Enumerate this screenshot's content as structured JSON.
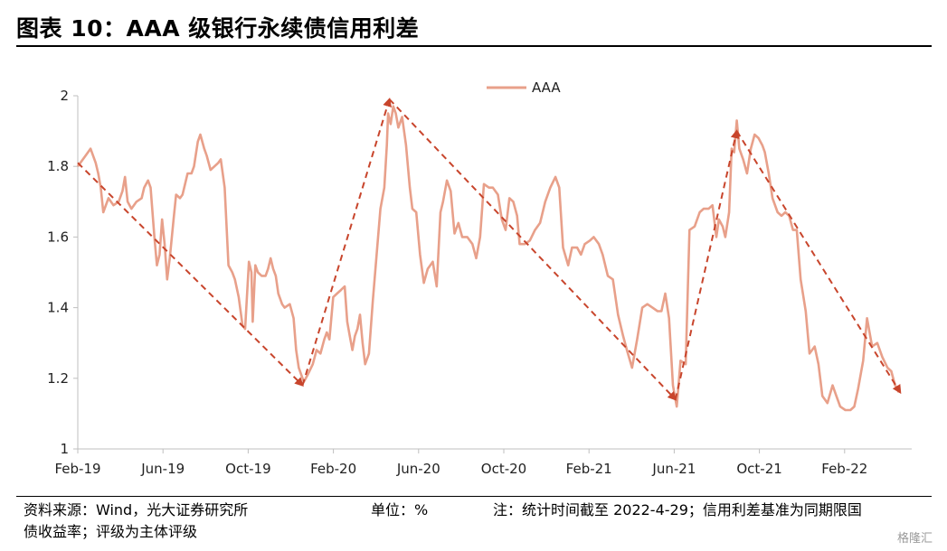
{
  "figure": {
    "title": "图表 10：AAA 级银行永续债信用利差",
    "source_line1": "资料来源：Wind，光大证券研究所",
    "unit": "单位：%",
    "note": "注：统计时间截至 2022-4-29；信用利差基准为同期限国",
    "source_line2": "债收益率；评级为主体评级",
    "watermark": "格隆汇"
  },
  "chart_data": {
    "type": "line",
    "title": "",
    "xlabel": "",
    "ylabel": "",
    "ylim": [
      1,
      2
    ],
    "yticks": [
      "2",
      "1.8",
      "1.6",
      "1.4",
      "1.2",
      "1"
    ],
    "xticks": [
      "Feb-19",
      "Jun-19",
      "Oct-19",
      "Feb-20",
      "Jun-20",
      "Oct-20",
      "Feb-21",
      "Jun-21",
      "Oct-21",
      "Feb-22"
    ],
    "grid": false,
    "legend_position": "top",
    "x_unit": "months since Feb-19",
    "series": [
      {
        "name": "AAA",
        "color": "#e8a08a",
        "points": [
          [
            0.0,
            1.8
          ],
          [
            0.3,
            1.83
          ],
          [
            0.5,
            1.85
          ],
          [
            0.7,
            1.81
          ],
          [
            0.8,
            1.78
          ],
          [
            0.9,
            1.74
          ],
          [
            1.0,
            1.67
          ],
          [
            1.2,
            1.71
          ],
          [
            1.4,
            1.69
          ],
          [
            1.6,
            1.7
          ],
          [
            1.75,
            1.73
          ],
          [
            1.85,
            1.77
          ],
          [
            1.95,
            1.7
          ],
          [
            2.1,
            1.68
          ],
          [
            2.3,
            1.7
          ],
          [
            2.5,
            1.71
          ],
          [
            2.6,
            1.74
          ],
          [
            2.75,
            1.76
          ],
          [
            2.85,
            1.74
          ],
          [
            3.0,
            1.6
          ],
          [
            3.1,
            1.52
          ],
          [
            3.2,
            1.55
          ],
          [
            3.3,
            1.65
          ],
          [
            3.4,
            1.58
          ],
          [
            3.5,
            1.48
          ],
          [
            3.6,
            1.54
          ],
          [
            3.75,
            1.65
          ],
          [
            3.85,
            1.72
          ],
          [
            4.0,
            1.71
          ],
          [
            4.1,
            1.72
          ],
          [
            4.2,
            1.75
          ],
          [
            4.3,
            1.78
          ],
          [
            4.45,
            1.78
          ],
          [
            4.55,
            1.8
          ],
          [
            4.7,
            1.87
          ],
          [
            4.8,
            1.89
          ],
          [
            4.95,
            1.85
          ],
          [
            5.05,
            1.83
          ],
          [
            5.2,
            1.79
          ],
          [
            5.35,
            1.8
          ],
          [
            5.5,
            1.81
          ],
          [
            5.6,
            1.82
          ],
          [
            5.75,
            1.74
          ],
          [
            5.9,
            1.52
          ],
          [
            6.05,
            1.5
          ],
          [
            6.15,
            1.48
          ],
          [
            6.3,
            1.43
          ],
          [
            6.45,
            1.35
          ],
          [
            6.55,
            1.34
          ],
          [
            6.7,
            1.53
          ],
          [
            6.8,
            1.5
          ],
          [
            6.85,
            1.36
          ],
          [
            6.95,
            1.52
          ],
          [
            7.05,
            1.5
          ],
          [
            7.2,
            1.49
          ],
          [
            7.35,
            1.49
          ],
          [
            7.45,
            1.51
          ],
          [
            7.55,
            1.54
          ],
          [
            7.65,
            1.51
          ],
          [
            7.75,
            1.49
          ],
          [
            7.85,
            1.44
          ],
          [
            8.0,
            1.41
          ],
          [
            8.1,
            1.4
          ],
          [
            8.3,
            1.41
          ],
          [
            8.45,
            1.37
          ],
          [
            8.55,
            1.28
          ],
          [
            8.65,
            1.23
          ],
          [
            8.75,
            1.21
          ],
          [
            8.85,
            1.19
          ],
          [
            9.0,
            1.21
          ],
          [
            9.2,
            1.24
          ],
          [
            9.35,
            1.28
          ],
          [
            9.5,
            1.27
          ],
          [
            9.65,
            1.31
          ],
          [
            9.75,
            1.33
          ],
          [
            9.85,
            1.31
          ],
          [
            10.0,
            1.43
          ],
          [
            10.15,
            1.44
          ],
          [
            10.3,
            1.45
          ],
          [
            10.45,
            1.46
          ],
          [
            10.55,
            1.36
          ],
          [
            10.65,
            1.32
          ],
          [
            10.75,
            1.28
          ],
          [
            10.85,
            1.32
          ],
          [
            10.95,
            1.34
          ],
          [
            11.05,
            1.38
          ],
          [
            11.15,
            1.3
          ],
          [
            11.25,
            1.24
          ],
          [
            11.4,
            1.27
          ],
          [
            11.55,
            1.42
          ],
          [
            11.7,
            1.55
          ],
          [
            11.85,
            1.68
          ],
          [
            12.0,
            1.74
          ],
          [
            12.1,
            1.86
          ],
          [
            12.15,
            1.95
          ],
          [
            12.25,
            1.92
          ],
          [
            12.35,
            1.97
          ],
          [
            12.45,
            1.95
          ],
          [
            12.55,
            1.91
          ],
          [
            12.7,
            1.94
          ],
          [
            12.85,
            1.86
          ],
          [
            13.0,
            1.74
          ],
          [
            13.1,
            1.68
          ],
          [
            13.25,
            1.67
          ],
          [
            13.4,
            1.55
          ],
          [
            13.55,
            1.47
          ],
          [
            13.7,
            1.51
          ],
          [
            13.9,
            1.53
          ],
          [
            14.05,
            1.46
          ],
          [
            14.2,
            1.67
          ],
          [
            14.3,
            1.7
          ],
          [
            14.45,
            1.76
          ],
          [
            14.6,
            1.73
          ],
          [
            14.75,
            1.61
          ],
          [
            14.9,
            1.64
          ],
          [
            15.05,
            1.6
          ],
          [
            15.25,
            1.6
          ],
          [
            15.45,
            1.58
          ],
          [
            15.6,
            1.54
          ],
          [
            15.75,
            1.6
          ],
          [
            15.9,
            1.75
          ],
          [
            16.1,
            1.74
          ],
          [
            16.25,
            1.74
          ],
          [
            16.45,
            1.72
          ],
          [
            16.6,
            1.65
          ],
          [
            16.75,
            1.62
          ],
          [
            16.9,
            1.71
          ],
          [
            17.05,
            1.7
          ],
          [
            17.2,
            1.66
          ],
          [
            17.3,
            1.58
          ],
          [
            17.5,
            1.58
          ],
          [
            17.7,
            1.59
          ],
          [
            17.9,
            1.62
          ],
          [
            18.1,
            1.64
          ],
          [
            18.3,
            1.7
          ],
          [
            18.5,
            1.74
          ],
          [
            18.7,
            1.77
          ],
          [
            18.85,
            1.74
          ],
          [
            19.0,
            1.57
          ],
          [
            19.2,
            1.52
          ],
          [
            19.35,
            1.57
          ],
          [
            19.55,
            1.57
          ],
          [
            19.7,
            1.55
          ],
          [
            19.85,
            1.58
          ],
          [
            20.05,
            1.59
          ],
          [
            20.2,
            1.6
          ],
          [
            20.4,
            1.58
          ],
          [
            20.55,
            1.55
          ],
          [
            20.75,
            1.49
          ],
          [
            20.95,
            1.48
          ],
          [
            21.15,
            1.38
          ],
          [
            21.35,
            1.32
          ],
          [
            21.5,
            1.28
          ],
          [
            21.7,
            1.23
          ],
          [
            21.9,
            1.31
          ],
          [
            22.1,
            1.4
          ],
          [
            22.3,
            1.41
          ],
          [
            22.5,
            1.4
          ],
          [
            22.7,
            1.39
          ],
          [
            22.85,
            1.39
          ],
          [
            23.0,
            1.44
          ],
          [
            23.15,
            1.37
          ],
          [
            23.3,
            1.18
          ],
          [
            23.45,
            1.12
          ],
          [
            23.6,
            1.25
          ],
          [
            23.8,
            1.24
          ],
          [
            23.95,
            1.62
          ],
          [
            24.15,
            1.63
          ],
          [
            24.35,
            1.67
          ],
          [
            24.5,
            1.68
          ],
          [
            24.7,
            1.68
          ],
          [
            24.85,
            1.69
          ],
          [
            25.0,
            1.6
          ],
          [
            25.1,
            1.65
          ],
          [
            25.25,
            1.63
          ],
          [
            25.35,
            1.6
          ],
          [
            25.5,
            1.67
          ],
          [
            25.6,
            1.85
          ],
          [
            25.7,
            1.84
          ],
          [
            25.8,
            1.93
          ],
          [
            25.9,
            1.85
          ],
          [
            26.05,
            1.82
          ],
          [
            26.2,
            1.78
          ],
          [
            26.35,
            1.85
          ],
          [
            26.5,
            1.89
          ],
          [
            26.65,
            1.88
          ],
          [
            26.8,
            1.86
          ],
          [
            26.9,
            1.84
          ],
          [
            27.05,
            1.78
          ],
          [
            27.2,
            1.71
          ],
          [
            27.4,
            1.67
          ],
          [
            27.55,
            1.66
          ],
          [
            27.7,
            1.67
          ],
          [
            27.85,
            1.66
          ],
          [
            28.0,
            1.62
          ],
          [
            28.15,
            1.62
          ],
          [
            28.3,
            1.48
          ],
          [
            28.5,
            1.39
          ],
          [
            28.65,
            1.27
          ],
          [
            28.85,
            1.29
          ],
          [
            29.0,
            1.24
          ],
          [
            29.15,
            1.15
          ],
          [
            29.35,
            1.13
          ],
          [
            29.55,
            1.18
          ],
          [
            29.7,
            1.15
          ],
          [
            29.85,
            1.12
          ],
          [
            30.05,
            1.11
          ],
          [
            30.25,
            1.11
          ],
          [
            30.4,
            1.12
          ],
          [
            30.55,
            1.17
          ],
          [
            30.75,
            1.25
          ],
          [
            30.9,
            1.37
          ],
          [
            31.1,
            1.29
          ],
          [
            31.3,
            1.3
          ],
          [
            31.5,
            1.26
          ],
          [
            31.7,
            1.23
          ],
          [
            31.85,
            1.22
          ],
          [
            32.0,
            1.18
          ],
          [
            32.15,
            1.16
          ]
        ]
      }
    ],
    "trend_arrows": [
      {
        "color": "#c8452c",
        "from": [
          0.0,
          1.81
        ],
        "to": [
          8.8,
          1.18
        ]
      },
      {
        "color": "#c8452c",
        "from": [
          8.8,
          1.18
        ],
        "to": [
          12.2,
          1.99
        ]
      },
      {
        "color": "#c8452c",
        "from": [
          12.2,
          1.99
        ],
        "to": [
          23.4,
          1.14
        ]
      },
      {
        "color": "#c8452c",
        "from": [
          23.4,
          1.14
        ],
        "to": [
          25.8,
          1.9
        ]
      },
      {
        "color": "#c8452c",
        "from": [
          25.8,
          1.9
        ],
        "to": [
          32.2,
          1.16
        ]
      }
    ]
  }
}
